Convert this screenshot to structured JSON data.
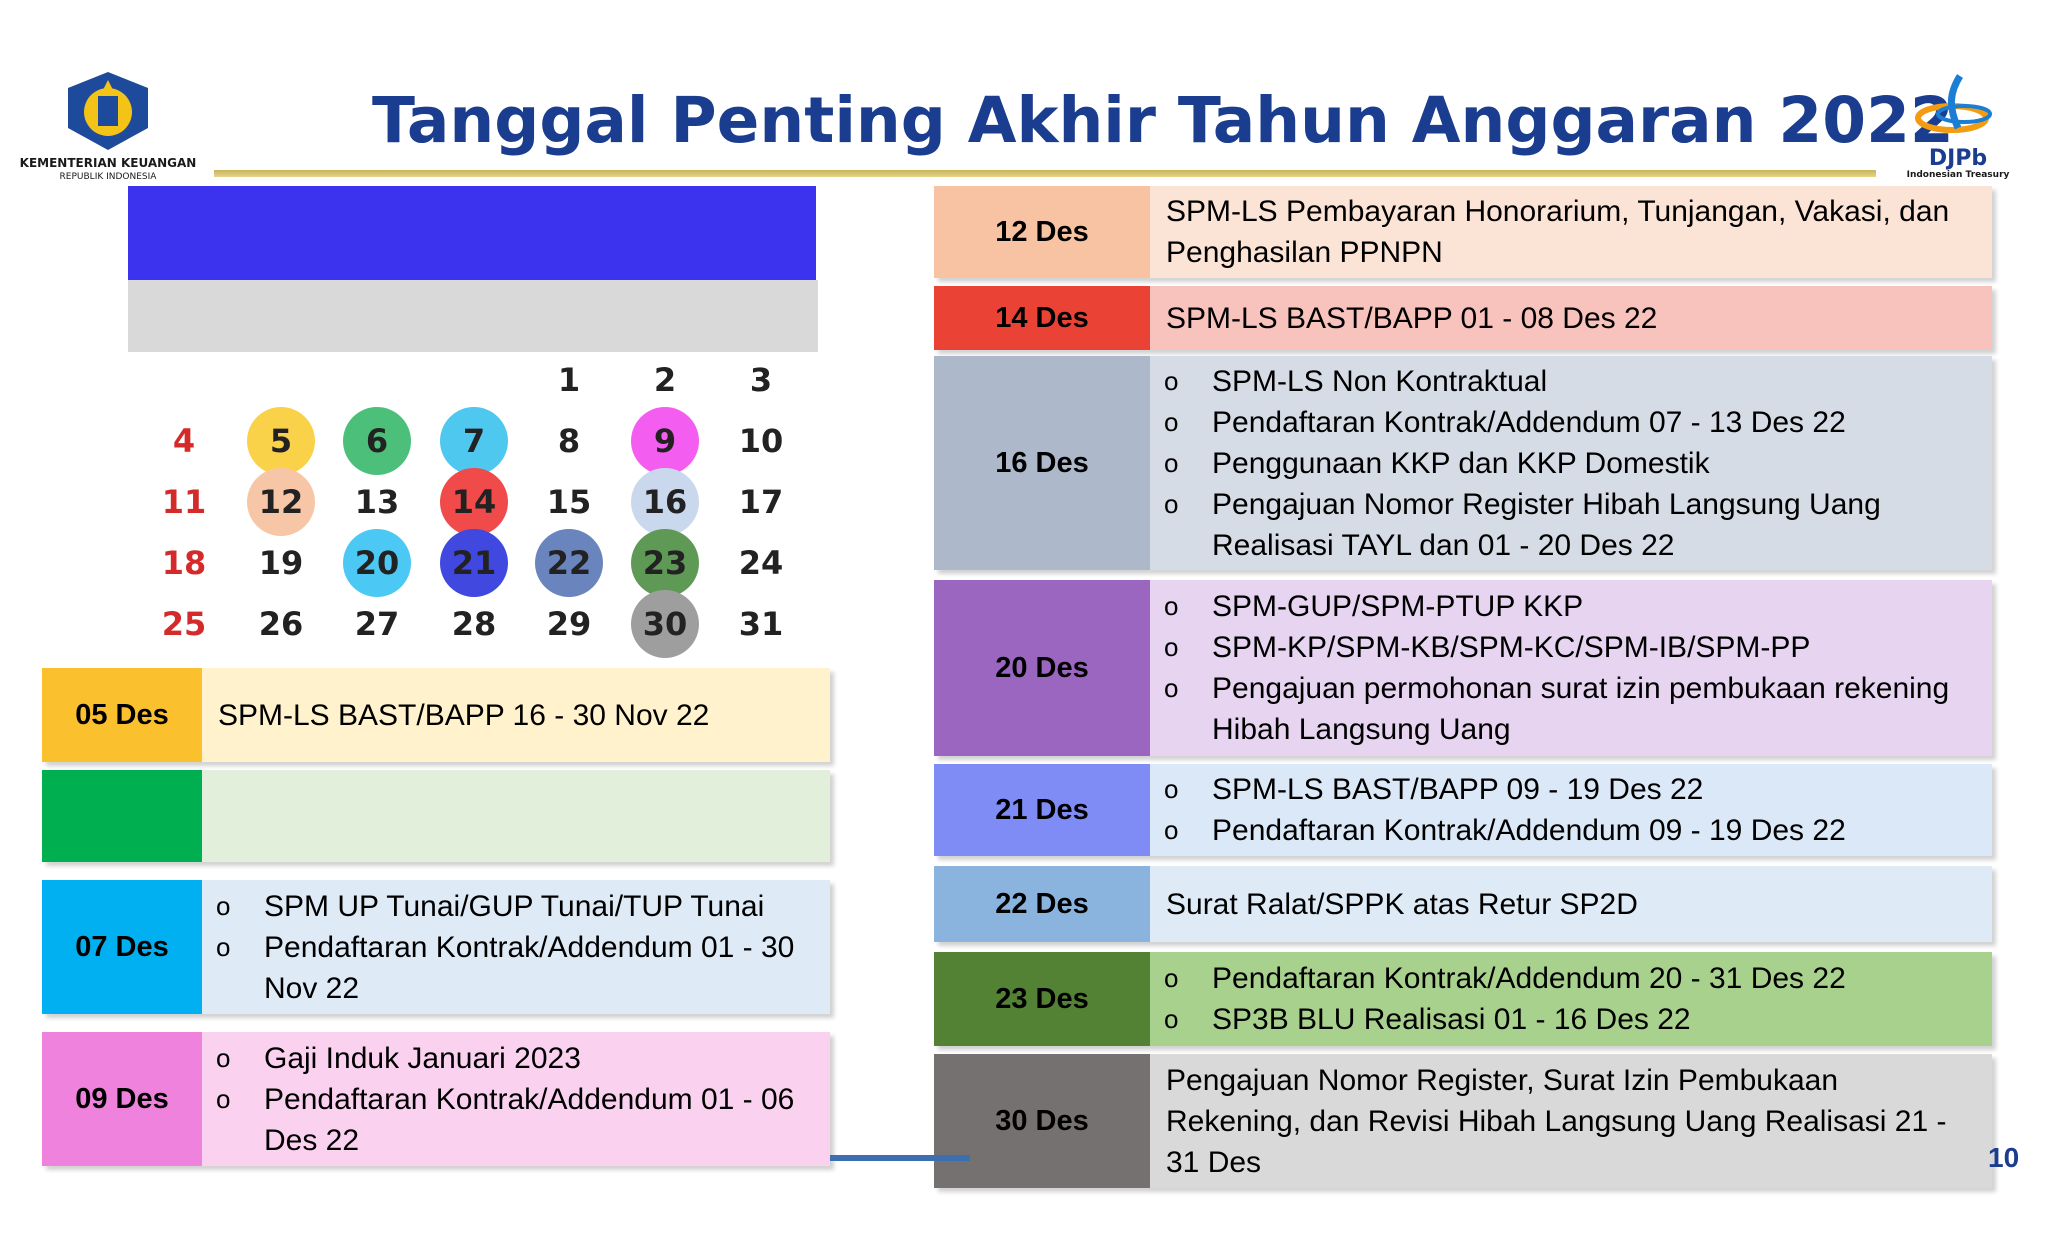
{
  "title": "Tanggal Penting Akhir Tahun Anggaran 2022",
  "logos": {
    "left_line1": "KEMENTERIAN KEUANGAN",
    "left_line2": "REPUBLIK INDONESIA",
    "right_name": "DJPb",
    "right_sub": "Indonesian Treasury"
  },
  "calendar": {
    "days": [
      {
        "d": "1"
      },
      {
        "d": "2"
      },
      {
        "d": "3"
      },
      {
        "d": "4",
        "sun": true
      },
      {
        "d": "5",
        "color": "#f9d24a"
      },
      {
        "d": "6",
        "color": "#4cbf7b"
      },
      {
        "d": "7",
        "color": "#4fc8f0"
      },
      {
        "d": "8"
      },
      {
        "d": "9",
        "color": "#f45ef0"
      },
      {
        "d": "10"
      },
      {
        "d": "11",
        "sun": true
      },
      {
        "d": "12",
        "color": "#f6c6a6"
      },
      {
        "d": "13"
      },
      {
        "d": "14",
        "color": "#f04a4a"
      },
      {
        "d": "15"
      },
      {
        "d": "16",
        "color": "#c9d8ec"
      },
      {
        "d": "17"
      },
      {
        "d": "18",
        "sun": true
      },
      {
        "d": "19"
      },
      {
        "d": "20",
        "color": "#4cc8f4"
      },
      {
        "d": "21",
        "color": "#4048e0"
      },
      {
        "d": "22",
        "color": "#6a84bd"
      },
      {
        "d": "23",
        "color": "#5f9956"
      },
      {
        "d": "24"
      },
      {
        "d": "25",
        "sun": true
      },
      {
        "d": "26"
      },
      {
        "d": "27"
      },
      {
        "d": "28"
      },
      {
        "d": "29"
      },
      {
        "d": "30",
        "color": "#9e9e9e"
      },
      {
        "d": "31"
      }
    ]
  },
  "left_rows": [
    {
      "date": "05 Des",
      "date_bg": "#fbc02d",
      "bg": "#fff2cc",
      "items": [
        "SPM-LS BAST/BAPP 16 - 30 Nov 22"
      ],
      "bullets": false
    },
    {
      "date": "",
      "date_bg": "#00b050",
      "bg": "#e2efda",
      "items": [],
      "bullets": false
    },
    {
      "date": "07 Des",
      "date_bg": "#00b0f0",
      "bg": "#deebf7",
      "items": [
        "SPM UP Tunai/GUP Tunai/TUP Tunai",
        "Pendaftaran Kontrak/Addendum 01 - 30 Nov 22"
      ],
      "bullets": true
    },
    {
      "date": "09 Des",
      "date_bg": "#ee82dc",
      "bg": "#fad2f0",
      "items": [
        "Gaji Induk Januari 2023",
        "Pendaftaran Kontrak/Addendum 01 - 06 Des 22"
      ],
      "bullets": true
    }
  ],
  "right_rows": [
    {
      "date": "12 Des",
      "date_bg": "#f7c3a3",
      "bg": "#fbe3d6",
      "items": [
        "SPM-LS Pembayaran Honorarium, Tunjangan, Vakasi, dan Penghasilan PPNPN"
      ],
      "bullets": false
    },
    {
      "date": "14 Des",
      "date_bg": "#ea4335",
      "bg": "#f8c2bd",
      "items": [
        "SPM-LS BAST/BAPP 01 - 08 Des 22"
      ],
      "bullets": false
    },
    {
      "date": "16 Des",
      "date_bg": "#adb9ca",
      "bg": "#d6dce5",
      "items": [
        "SPM-LS Non Kontraktual",
        "Pendaftaran Kontrak/Addendum 07 - 13 Des 22",
        "Penggunaan KKP dan KKP Domestik",
        "Pengajuan Nomor Register Hibah Langsung Uang Realisasi TAYL dan 01 - 20 Des 22"
      ],
      "bullets": true
    },
    {
      "date": "20 Des",
      "date_bg": "#9a66c0",
      "bg": "#e6d4f0",
      "items": [
        "SPM-GUP/SPM-PTUP KKP",
        "SPM-KP/SPM-KB/SPM-KC/SPM-IB/SPM-PP",
        "Pengajuan permohonan surat izin pembukaan rekening Hibah Langsung Uang"
      ],
      "bullets": true
    },
    {
      "date": "21 Des",
      "date_bg": "#7f8cf5",
      "bg": "#dbe8f8",
      "items": [
        "SPM-LS BAST/BAPP 09 - 19 Des 22",
        "Pendaftaran Kontrak/Addendum 09 - 19 Des 22"
      ],
      "bullets": true
    },
    {
      "date": "22 Des",
      "date_bg": "#8ab4de",
      "bg": "#deebf7",
      "items": [
        "Surat Ralat/SPPK atas Retur SP2D"
      ],
      "bullets": false
    },
    {
      "date": "23 Des",
      "date_bg": "#548235",
      "bg": "#a9d18e",
      "items": [
        "Pendaftaran Kontrak/Addendum 20 - 31 Des 22",
        "SP3B BLU Realisasi 01 - 16 Des 22"
      ],
      "bullets": true
    },
    {
      "date": "30 Des",
      "date_bg": "#767171",
      "bg": "#d9d9d9",
      "items": [
        "Pengajuan Nomor Register, Surat Izin Pembukaan Rekening, dan Revisi Hibah Langsung Uang Realisasi 21 - 31 Des"
      ],
      "bullets": false
    }
  ],
  "page_number": "10"
}
